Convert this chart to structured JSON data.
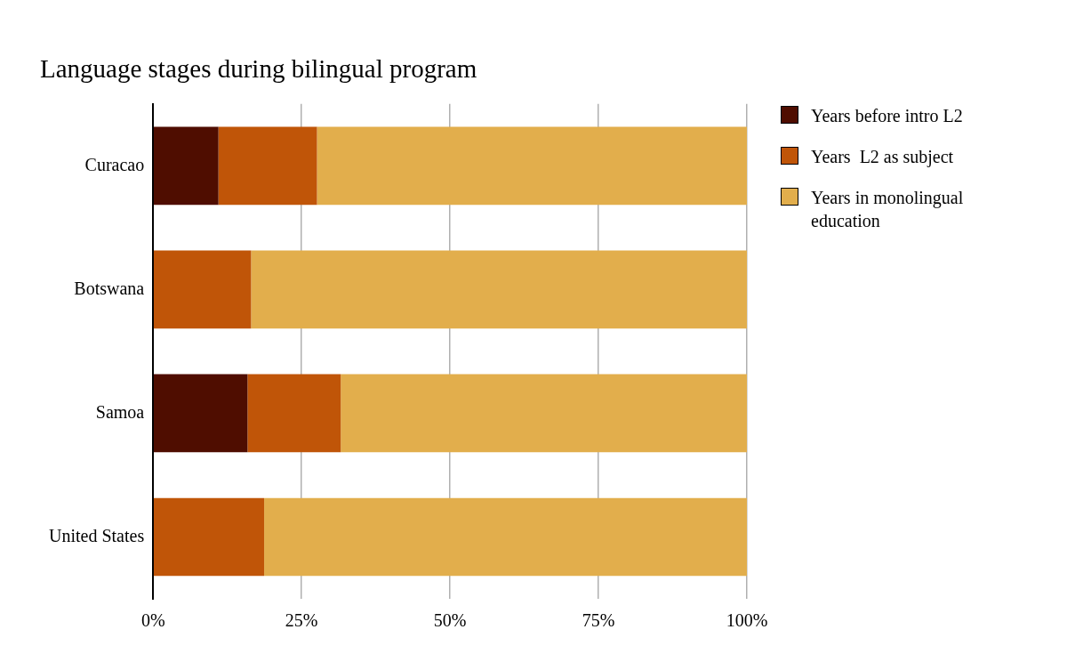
{
  "chart_data": {
    "type": "bar",
    "title": "Language stages during bilingual program",
    "orientation": "horizontal",
    "stacked": true,
    "categories": [
      "Curacao",
      "Botswana",
      "Samoa",
      "United States"
    ],
    "series": [
      {
        "name": "Years before intro L2",
        "color": "#4f0d00",
        "values": [
          11,
          0,
          15.9,
          0
        ]
      },
      {
        "name": "Years  L2 as subject",
        "color": "#c05508",
        "values": [
          16.6,
          16.5,
          15.7,
          18.7
        ]
      },
      {
        "name": "Years in monolingual education",
        "color": "#e2ae4c",
        "values": [
          72.4,
          83.5,
          68.4,
          81.3
        ]
      }
    ],
    "xlim": [
      0,
      100
    ],
    "xticks": [
      {
        "value": 0,
        "label": "0%"
      },
      {
        "value": 25,
        "label": "25%"
      },
      {
        "value": 50,
        "label": "50%"
      },
      {
        "value": 75,
        "label": "75%"
      },
      {
        "value": 100,
        "label": "100%"
      }
    ],
    "grid": "x",
    "legend": "top right"
  }
}
